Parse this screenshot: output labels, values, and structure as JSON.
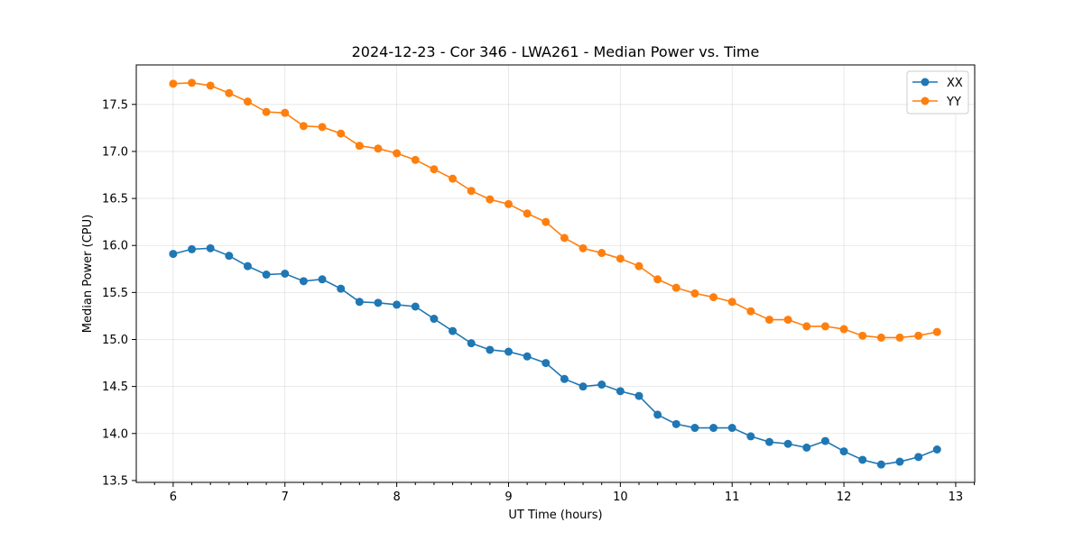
{
  "chart_data": {
    "type": "line",
    "title": "2024-12-23 - Cor 346 - LWA261 - Median Power vs. Time",
    "xlabel": "UT Time (hours)",
    "ylabel": "Median Power (CPU)",
    "xlim": [
      5.67,
      13.17
    ],
    "ylim": [
      13.48,
      17.92
    ],
    "xticks": [
      6,
      7,
      8,
      9,
      10,
      11,
      12,
      13
    ],
    "xtick_labels": [
      "6",
      "7",
      "8",
      "9",
      "10",
      "11",
      "12",
      "13"
    ],
    "yticks": [
      13.5,
      14.0,
      14.5,
      15.0,
      15.5,
      16.0,
      16.5,
      17.0,
      17.5
    ],
    "ytick_labels": [
      "13.5",
      "14.0",
      "14.5",
      "15.0",
      "15.5",
      "16.0",
      "16.5",
      "17.0",
      "17.5"
    ],
    "grid": true,
    "legend_position": "top-right",
    "x": [
      6.0,
      6.1667,
      6.3333,
      6.5,
      6.6667,
      6.8333,
      7.0,
      7.1667,
      7.3333,
      7.5,
      7.6667,
      7.8333,
      8.0,
      8.1667,
      8.3333,
      8.5,
      8.6667,
      8.8333,
      9.0,
      9.1667,
      9.3333,
      9.5,
      9.6667,
      9.8333,
      10.0,
      10.1667,
      10.3333,
      10.5,
      10.6667,
      10.8333,
      11.0,
      11.1667,
      11.3333,
      11.5,
      11.6667,
      11.8333,
      12.0,
      12.1667,
      12.3333,
      12.5,
      12.6667,
      12.8333
    ],
    "series": [
      {
        "name": "XX",
        "color": "#1f77b4",
        "values": [
          15.91,
          15.96,
          15.97,
          15.89,
          15.78,
          15.69,
          15.7,
          15.62,
          15.64,
          15.54,
          15.4,
          15.39,
          15.37,
          15.35,
          15.22,
          15.09,
          14.96,
          14.89,
          14.87,
          14.82,
          14.75,
          14.58,
          14.5,
          14.52,
          14.45,
          14.4,
          14.2,
          14.1,
          14.06,
          14.06,
          14.06,
          13.97,
          13.91,
          13.89,
          13.85,
          13.92,
          13.81,
          13.72,
          13.67,
          13.7,
          13.75,
          13.83
        ]
      },
      {
        "name": "YY",
        "color": "#ff7f0e",
        "values": [
          17.72,
          17.73,
          17.7,
          17.62,
          17.53,
          17.42,
          17.41,
          17.27,
          17.26,
          17.19,
          17.06,
          17.03,
          16.98,
          16.91,
          16.81,
          16.71,
          16.58,
          16.49,
          16.44,
          16.34,
          16.25,
          16.08,
          15.97,
          15.92,
          15.86,
          15.78,
          15.64,
          15.55,
          15.49,
          15.45,
          15.4,
          15.3,
          15.21,
          15.21,
          15.14,
          15.14,
          15.11,
          15.04,
          15.02,
          15.02,
          15.04,
          15.08
        ]
      }
    ]
  }
}
